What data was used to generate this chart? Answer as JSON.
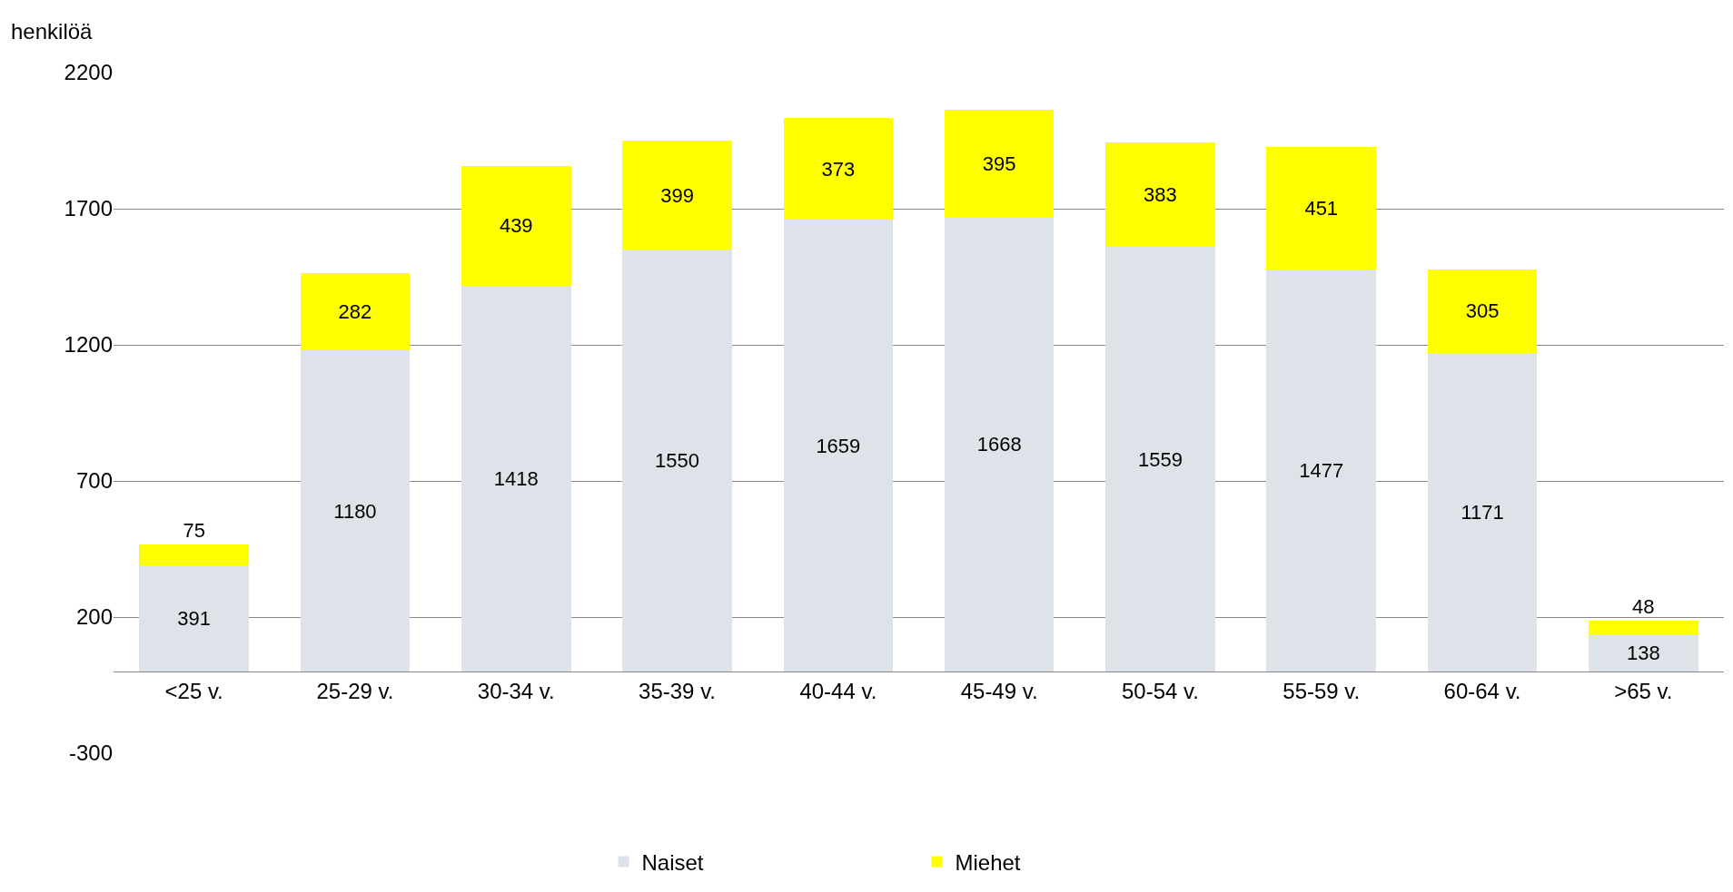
{
  "chart_data": {
    "type": "bar",
    "stacked": true,
    "ylabel": "henkilöä",
    "categories": [
      "<25 v.",
      "25-29 v.",
      "30-34 v.",
      "35-39 v.",
      "40-44 v.",
      "45-49 v.",
      "50-54 v.",
      "55-59 v.",
      "60-64 v.",
      ">65 v."
    ],
    "series": [
      {
        "name": "Naiset",
        "color": "#dee3ea",
        "values": [
          391,
          1180,
          1418,
          1550,
          1659,
          1668,
          1559,
          1477,
          1171,
          138
        ]
      },
      {
        "name": "Miehet",
        "color": "#ffff00",
        "values": [
          75,
          282,
          439,
          399,
          373,
          395,
          383,
          451,
          305,
          48
        ]
      }
    ],
    "ylim": [
      -300,
      2200
    ],
    "yticks": [
      -300,
      200,
      700,
      1200,
      1700,
      2200
    ],
    "grid": "y",
    "legend": "bottom",
    "data_labels": true
  }
}
